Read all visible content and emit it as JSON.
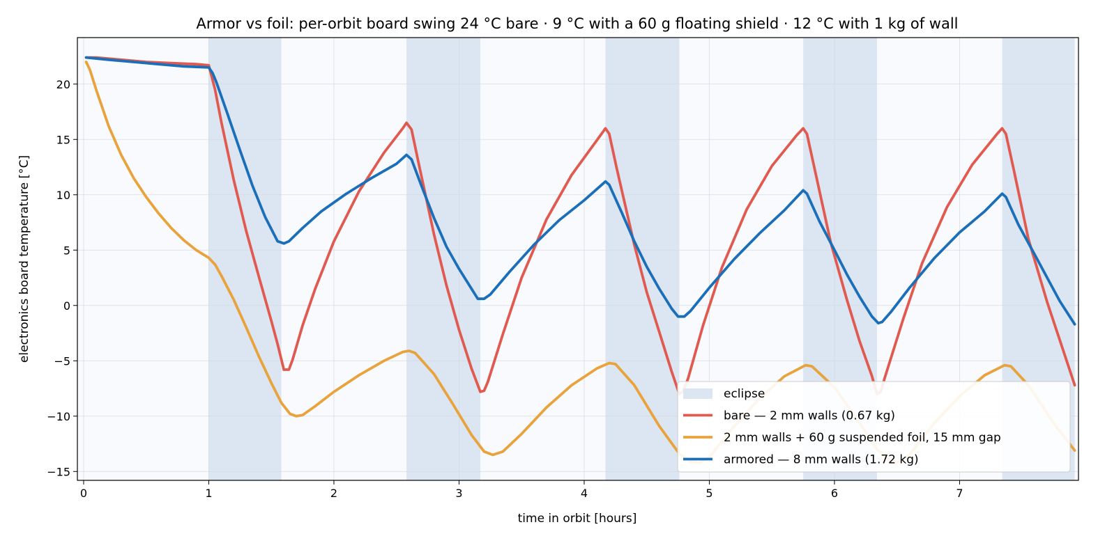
{
  "chart_data": {
    "type": "line",
    "title": "Armor vs foil: per-orbit board swing 24 °C bare · 9 °C with a 60 g floating shield · 12 °C with 1 kg of wall",
    "xlabel": "time in orbit  [hours]",
    "ylabel": "electronics board temperature  [°C]",
    "xlim": [
      -0.05,
      7.95
    ],
    "ylim": [
      -15.8,
      24.2
    ],
    "x_ticks": [
      0,
      1,
      2,
      3,
      4,
      5,
      6,
      7
    ],
    "x_tick_labels": [
      "0",
      "1",
      "2",
      "3",
      "4",
      "5",
      "6",
      "7"
    ],
    "y_ticks": [
      -15,
      -10,
      -5,
      0,
      5,
      10,
      15,
      20
    ],
    "y_tick_labels": [
      "−15",
      "−10",
      "−5",
      "0",
      "5",
      "10",
      "15",
      "20"
    ],
    "grid": true,
    "legend_position": "lower-right",
    "eclipse": {
      "label": "eclipse",
      "color": "#dce5f2",
      "intervals": [
        [
          1.0,
          1.58
        ],
        [
          2.58,
          3.17
        ],
        [
          4.17,
          4.76
        ],
        [
          5.75,
          6.34
        ],
        [
          7.34,
          7.92
        ]
      ]
    },
    "series": [
      {
        "name": "bare — 2 mm walls (0.67 kg)",
        "color": "#e05a4f",
        "points": [
          [
            0.02,
            22.4
          ],
          [
            0.1,
            22.4
          ],
          [
            0.3,
            22.2
          ],
          [
            0.5,
            22.0
          ],
          [
            0.7,
            21.9
          ],
          [
            0.9,
            21.8
          ],
          [
            1.0,
            21.7
          ],
          [
            1.05,
            19.5
          ],
          [
            1.1,
            16.6
          ],
          [
            1.2,
            11.3
          ],
          [
            1.3,
            6.7
          ],
          [
            1.4,
            2.6
          ],
          [
            1.5,
            -1.4
          ],
          [
            1.55,
            -3.5
          ],
          [
            1.6,
            -5.8
          ],
          [
            1.64,
            -5.8
          ],
          [
            1.67,
            -4.9
          ],
          [
            1.75,
            -1.8
          ],
          [
            1.85,
            1.5
          ],
          [
            2.0,
            5.8
          ],
          [
            2.2,
            10.3
          ],
          [
            2.4,
            13.8
          ],
          [
            2.55,
            16.0
          ],
          [
            2.58,
            16.5
          ],
          [
            2.62,
            15.9
          ],
          [
            2.68,
            12.7
          ],
          [
            2.8,
            6.4
          ],
          [
            2.9,
            1.8
          ],
          [
            3.0,
            -2.2
          ],
          [
            3.1,
            -5.7
          ],
          [
            3.17,
            -7.8
          ],
          [
            3.2,
            -7.7
          ],
          [
            3.23,
            -6.9
          ],
          [
            3.35,
            -2.6
          ],
          [
            3.5,
            2.5
          ],
          [
            3.7,
            7.8
          ],
          [
            3.9,
            11.8
          ],
          [
            4.1,
            14.9
          ],
          [
            4.17,
            16.0
          ],
          [
            4.2,
            15.5
          ],
          [
            4.26,
            12.4
          ],
          [
            4.4,
            5.5
          ],
          [
            4.5,
            1.2
          ],
          [
            4.6,
            -2.4
          ],
          [
            4.7,
            -6.0
          ],
          [
            4.76,
            -8.0
          ],
          [
            4.79,
            -7.8
          ],
          [
            4.83,
            -6.6
          ],
          [
            4.95,
            -1.8
          ],
          [
            5.1,
            3.4
          ],
          [
            5.3,
            8.7
          ],
          [
            5.5,
            12.6
          ],
          [
            5.7,
            15.4
          ],
          [
            5.75,
            16.0
          ],
          [
            5.78,
            15.5
          ],
          [
            5.84,
            12.4
          ],
          [
            5.97,
            5.7
          ],
          [
            6.1,
            0.5
          ],
          [
            6.2,
            -3.2
          ],
          [
            6.3,
            -6.4
          ],
          [
            6.34,
            -8.0
          ],
          [
            6.37,
            -7.8
          ],
          [
            6.4,
            -6.6
          ],
          [
            6.55,
            -1.2
          ],
          [
            6.7,
            3.8
          ],
          [
            6.9,
            8.9
          ],
          [
            7.1,
            12.7
          ],
          [
            7.3,
            15.5
          ],
          [
            7.34,
            16.0
          ],
          [
            7.37,
            15.5
          ],
          [
            7.43,
            12.4
          ],
          [
            7.55,
            6.0
          ],
          [
            7.7,
            0.3
          ],
          [
            7.85,
            -4.8
          ],
          [
            7.92,
            -7.2
          ]
        ]
      },
      {
        "name": "2 mm walls + 60 g suspended foil, 15 mm gap",
        "color": "#e8a33d",
        "points": [
          [
            0.02,
            22.0
          ],
          [
            0.05,
            21.3
          ],
          [
            0.1,
            19.5
          ],
          [
            0.2,
            16.2
          ],
          [
            0.3,
            13.6
          ],
          [
            0.4,
            11.5
          ],
          [
            0.5,
            9.8
          ],
          [
            0.6,
            8.3
          ],
          [
            0.7,
            7.0
          ],
          [
            0.8,
            5.9
          ],
          [
            0.9,
            5.0
          ],
          [
            1.0,
            4.3
          ],
          [
            1.05,
            3.7
          ],
          [
            1.1,
            2.7
          ],
          [
            1.2,
            0.5
          ],
          [
            1.3,
            -2.0
          ],
          [
            1.4,
            -4.6
          ],
          [
            1.5,
            -7.0
          ],
          [
            1.58,
            -8.8
          ],
          [
            1.65,
            -9.8
          ],
          [
            1.7,
            -10.0
          ],
          [
            1.75,
            -9.9
          ],
          [
            1.85,
            -9.1
          ],
          [
            2.0,
            -7.8
          ],
          [
            2.2,
            -6.3
          ],
          [
            2.4,
            -5.0
          ],
          [
            2.55,
            -4.2
          ],
          [
            2.6,
            -4.1
          ],
          [
            2.65,
            -4.3
          ],
          [
            2.8,
            -6.2
          ],
          [
            2.95,
            -8.9
          ],
          [
            3.1,
            -11.7
          ],
          [
            3.2,
            -13.2
          ],
          [
            3.27,
            -13.5
          ],
          [
            3.35,
            -13.2
          ],
          [
            3.5,
            -11.6
          ],
          [
            3.7,
            -9.2
          ],
          [
            3.9,
            -7.2
          ],
          [
            4.1,
            -5.7
          ],
          [
            4.2,
            -5.2
          ],
          [
            4.25,
            -5.3
          ],
          [
            4.4,
            -7.2
          ],
          [
            4.6,
            -10.9
          ],
          [
            4.76,
            -13.4
          ],
          [
            4.85,
            -14.1
          ],
          [
            4.92,
            -14.2
          ],
          [
            5.0,
            -13.7
          ],
          [
            5.2,
            -10.9
          ],
          [
            5.4,
            -8.4
          ],
          [
            5.6,
            -6.4
          ],
          [
            5.77,
            -5.4
          ],
          [
            5.82,
            -5.5
          ],
          [
            6.0,
            -7.4
          ],
          [
            6.2,
            -10.6
          ],
          [
            6.34,
            -13.0
          ],
          [
            6.45,
            -14.1
          ],
          [
            6.5,
            -14.2
          ],
          [
            6.6,
            -13.5
          ],
          [
            6.8,
            -10.6
          ],
          [
            7.0,
            -8.2
          ],
          [
            7.2,
            -6.3
          ],
          [
            7.36,
            -5.4
          ],
          [
            7.41,
            -5.5
          ],
          [
            7.55,
            -7.2
          ],
          [
            7.75,
            -10.6
          ],
          [
            7.92,
            -13.1
          ]
        ]
      },
      {
        "name": "armored — 8 mm walls (1.72 kg)",
        "color": "#1a6fb8",
        "points": [
          [
            0.02,
            22.4
          ],
          [
            0.2,
            22.2
          ],
          [
            0.4,
            22.0
          ],
          [
            0.6,
            21.8
          ],
          [
            0.8,
            21.6
          ],
          [
            1.0,
            21.5
          ],
          [
            1.03,
            21.0
          ],
          [
            1.06,
            20.2
          ],
          [
            1.15,
            17.3
          ],
          [
            1.25,
            14.0
          ],
          [
            1.35,
            10.8
          ],
          [
            1.45,
            8.0
          ],
          [
            1.55,
            5.8
          ],
          [
            1.6,
            5.6
          ],
          [
            1.64,
            5.8
          ],
          [
            1.75,
            7.0
          ],
          [
            1.9,
            8.5
          ],
          [
            2.1,
            10.1
          ],
          [
            2.3,
            11.5
          ],
          [
            2.5,
            12.8
          ],
          [
            2.58,
            13.6
          ],
          [
            2.62,
            13.2
          ],
          [
            2.7,
            10.8
          ],
          [
            2.8,
            7.9
          ],
          [
            2.9,
            5.3
          ],
          [
            3.0,
            3.3
          ],
          [
            3.1,
            1.5
          ],
          [
            3.15,
            0.6
          ],
          [
            3.2,
            0.6
          ],
          [
            3.25,
            1.0
          ],
          [
            3.4,
            3.0
          ],
          [
            3.6,
            5.5
          ],
          [
            3.8,
            7.7
          ],
          [
            4.0,
            9.5
          ],
          [
            4.17,
            11.2
          ],
          [
            4.2,
            10.9
          ],
          [
            4.3,
            8.4
          ],
          [
            4.4,
            5.8
          ],
          [
            4.5,
            3.5
          ],
          [
            4.6,
            1.5
          ],
          [
            4.7,
            -0.3
          ],
          [
            4.75,
            -1.0
          ],
          [
            4.8,
            -1.0
          ],
          [
            4.85,
            -0.5
          ],
          [
            5.0,
            1.6
          ],
          [
            5.2,
            4.2
          ],
          [
            5.4,
            6.5
          ],
          [
            5.6,
            8.6
          ],
          [
            5.75,
            10.4
          ],
          [
            5.78,
            10.1
          ],
          [
            5.88,
            7.6
          ],
          [
            6.0,
            5.0
          ],
          [
            6.1,
            2.8
          ],
          [
            6.2,
            0.8
          ],
          [
            6.3,
            -1.0
          ],
          [
            6.35,
            -1.6
          ],
          [
            6.38,
            -1.5
          ],
          [
            6.45,
            -0.6
          ],
          [
            6.6,
            1.6
          ],
          [
            6.8,
            4.3
          ],
          [
            7.0,
            6.6
          ],
          [
            7.2,
            8.5
          ],
          [
            7.34,
            10.1
          ],
          [
            7.37,
            9.8
          ],
          [
            7.47,
            7.3
          ],
          [
            7.6,
            4.6
          ],
          [
            7.7,
            2.5
          ],
          [
            7.8,
            0.4
          ],
          [
            7.92,
            -1.7
          ]
        ]
      }
    ]
  }
}
